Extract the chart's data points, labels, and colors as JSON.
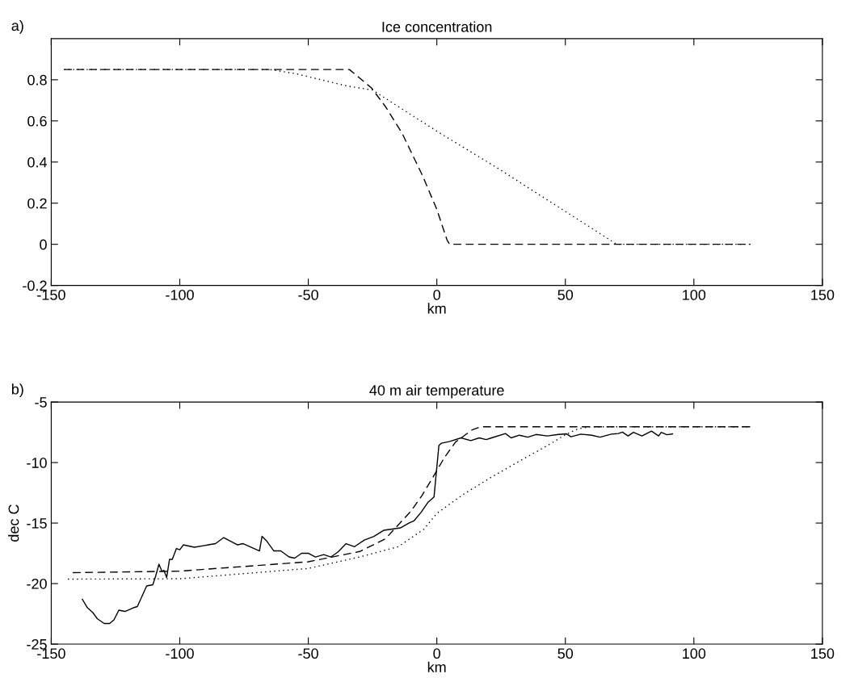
{
  "chart_data": [
    {
      "type": "line",
      "title": "Ice concentration",
      "xlabel": "km",
      "annotations": [
        "a)"
      ],
      "xlim": [
        -150,
        150
      ],
      "xticks": [
        -150,
        -100,
        -50,
        0,
        50,
        100,
        150
      ],
      "ylim": [
        -0.2,
        1
      ],
      "yticks": [
        -0.2,
        0,
        0.2,
        0.4,
        0.6,
        0.8
      ],
      "grid": false,
      "legend": false,
      "series": [
        {
          "color": "#000000",
          "line_style": "dashed",
          "x": [
            -145,
            -34,
            -25.4,
            -20,
            -13.5,
            -5.6,
            0,
            4,
            5,
            122
          ],
          "values": [
            0.85,
            0.85,
            0.76,
            0.67,
            0.54,
            0.335,
            0.17,
            0.02,
            0,
            0
          ]
        },
        {
          "color": "#000000",
          "line_style": "dotted",
          "x": [
            -145,
            -65,
            -55,
            -45,
            -35,
            -25,
            0,
            25,
            50,
            70,
            122
          ],
          "values": [
            0.85,
            0.85,
            0.83,
            0.8,
            0.77,
            0.75,
            0.55,
            0.36,
            0.16,
            0,
            0
          ]
        }
      ]
    },
    {
      "type": "line",
      "title": "40 m air temperature",
      "xlabel": "km",
      "ylabel": "dec C",
      "annotations": [
        "b)"
      ],
      "xlim": [
        -150,
        150
      ],
      "xticks": [
        -150,
        -100,
        -50,
        0,
        50,
        100,
        150
      ],
      "ylim": [
        -25,
        -5
      ],
      "yticks": [
        -25,
        -20,
        -15,
        -10,
        -5
      ],
      "grid": false,
      "legend": false,
      "series": [
        {
          "color": "#000000",
          "line_style": "solid",
          "x": [
            -137.9,
            -135.9,
            -133.8,
            -132.1,
            -129.4,
            -127.3,
            -125.6,
            -123.7,
            -121.3,
            -118.1,
            -116.5,
            -114.8,
            -112.9,
            -110.5,
            -109.4,
            -108.1,
            -106.9,
            -106.2,
            -105.1,
            -104.0,
            -102.9,
            -101.3,
            -100,
            -98.6,
            -94.3,
            -88.9,
            -86.1,
            -82.9,
            -80.2,
            -77.5,
            -75.3,
            -69.0,
            -68.0,
            -66.1,
            -63.4,
            -60.7,
            -57.5,
            -55.3,
            -52.6,
            -49.9,
            -47.2,
            -44.0,
            -41.2,
            -38.5,
            -35.3,
            -32.0,
            -28.2,
            -24.5,
            -20.7,
            -17.4,
            -14.2,
            -10.9,
            -8.8,
            -6.1,
            -3.5,
            -1.1,
            0.8,
            1.8,
            5.1,
            9.4,
            13.2,
            16.5,
            19.2,
            21.3,
            26.7,
            28.9,
            32.1,
            35.4,
            38.6,
            43,
            47.3,
            50.5,
            52.2,
            56,
            60.3,
            63.5,
            67.9,
            70.6,
            72.2,
            74.4,
            76.5,
            79.8,
            83.5,
            86.3,
            87.3,
            89.5,
            91.7
          ],
          "values": [
            -21.3,
            -22.0,
            -22.4,
            -22.9,
            -23.3,
            -23.3,
            -23.0,
            -22.2,
            -22.3,
            -22.0,
            -21.9,
            -21.1,
            -20.2,
            -20.1,
            -19.4,
            -18.4,
            -19.0,
            -18.9,
            -19.5,
            -18.0,
            -18.0,
            -17.1,
            -17.2,
            -16.8,
            -17.0,
            -16.8,
            -16.7,
            -16.2,
            -16.5,
            -16.8,
            -16.7,
            -17.3,
            -16.1,
            -16.5,
            -17.3,
            -17.3,
            -17.8,
            -17.9,
            -17.5,
            -17.5,
            -17.8,
            -17.6,
            -17.8,
            -17.4,
            -16.7,
            -16.95,
            -16.4,
            -16.1,
            -15.6,
            -15.5,
            -15.4,
            -15.0,
            -14.8,
            -14.1,
            -13.3,
            -12.85,
            -8.6,
            -8.4,
            -8.25,
            -7.96,
            -8.18,
            -7.96,
            -8.1,
            -7.96,
            -7.6,
            -7.96,
            -7.74,
            -7.9,
            -7.68,
            -7.8,
            -7.68,
            -7.63,
            -7.87,
            -7.65,
            -7.74,
            -7.9,
            -7.65,
            -7.6,
            -7.48,
            -7.8,
            -7.5,
            -7.8,
            -7.4,
            -7.8,
            -7.5,
            -7.7,
            -7.63
          ]
        },
        {
          "color": "#000000",
          "line_style": "dashed",
          "x": [
            -141.6,
            -100,
            -50,
            -30,
            -20,
            -10,
            -5.7,
            -1.6,
            2.9,
            7.3,
            13.7,
            17,
            122
          ],
          "values": [
            -19.1,
            -18.97,
            -18.2,
            -17.35,
            -16.3,
            -14.0,
            -12.7,
            -11.25,
            -9.6,
            -8.3,
            -7.3,
            -7.04,
            -7.04
          ]
        },
        {
          "color": "#000000",
          "line_style": "dotted",
          "x": [
            -143.5,
            -100,
            -50,
            -30,
            -15,
            -5,
            0,
            10.5,
            21.3,
            32,
            43,
            50,
            55,
            60,
            122
          ],
          "values": [
            -19.63,
            -19.6,
            -18.75,
            -17.8,
            -16.95,
            -15.5,
            -14.2,
            -12.6,
            -11.2,
            -9.9,
            -8.6,
            -7.7,
            -7.2,
            -7.04,
            -7.04
          ]
        }
      ]
    }
  ]
}
